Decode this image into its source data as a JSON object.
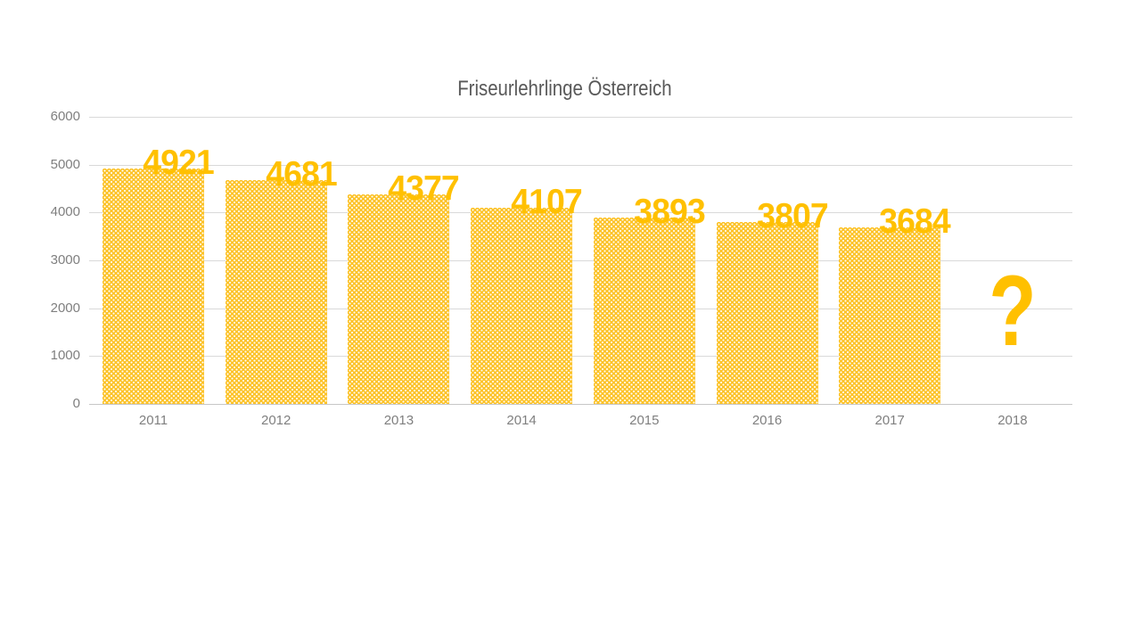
{
  "chart_data": {
    "type": "bar",
    "title": "Friseurlehrlinge Österreich",
    "categories": [
      "2011",
      "2012",
      "2013",
      "2014",
      "2015",
      "2016",
      "2017",
      "2018"
    ],
    "values": [
      4921,
      4681,
      4377,
      4107,
      3893,
      3807,
      3684,
      null
    ],
    "data_labels": [
      "4921",
      "4681",
      "4377",
      "4107",
      "3893",
      "3807",
      "3684",
      "?"
    ],
    "missing_value_symbol": "?",
    "xlabel": "",
    "ylabel": "",
    "ylim": [
      0,
      6000
    ],
    "yticks": [
      0,
      1000,
      2000,
      3000,
      4000,
      5000,
      6000
    ],
    "grid": true,
    "legend": false,
    "layout_hints": {
      "gridlines": "horizontal only",
      "bar_pattern": "white dots on gold",
      "data_label_position": "outside end, offset right"
    },
    "colors": {
      "bar_fill": "#FCC32B",
      "bar_pattern_dot": "#FFFFFF",
      "data_label": "#FFC000",
      "title_text": "#595959",
      "axis_text": "#7F7F7F",
      "gridline": "#D9D9D9",
      "axis_line": "#C7C7C7",
      "background": "#FFFFFF"
    }
  }
}
